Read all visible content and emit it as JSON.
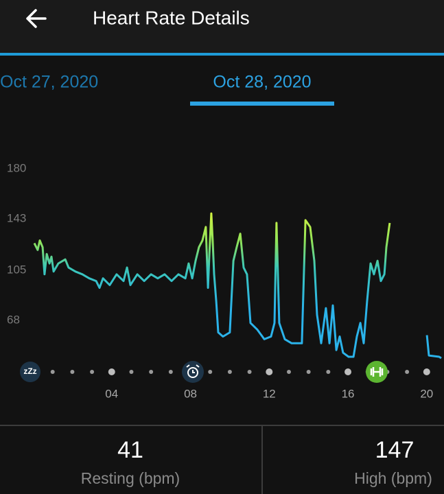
{
  "header": {
    "title": "Heart Rate Details"
  },
  "tabs": [
    "Oct 27, 2020",
    "Oct 28, 2020"
  ],
  "chart_data": {
    "type": "line",
    "x": [
      0.07,
      0.24,
      0.35,
      0.49,
      0.59,
      0.7,
      0.84,
      0.94,
      1.05,
      1.29,
      1.64,
      1.81,
      2.16,
      2.51,
      2.86,
      3.21,
      3.38,
      3.56,
      3.9,
      4.25,
      4.6,
      4.78,
      4.95,
      5.3,
      5.65,
      6.0,
      6.34,
      6.69,
      7.04,
      7.39,
      7.74,
      7.91,
      8.09,
      8.26,
      8.43,
      8.61,
      8.78,
      8.89,
      8.96,
      9.06,
      9.13,
      9.2,
      9.31,
      9.41,
      9.65,
      10.0,
      10.18,
      10.35,
      10.53,
      10.7,
      10.87,
      11.05,
      11.4,
      11.75,
      12.09,
      12.27,
      12.37,
      12.51,
      12.79,
      13.14,
      13.66,
      13.84,
      14.08,
      14.29,
      14.43,
      14.64,
      14.88,
      15.06,
      15.23,
      15.41,
      15.58,
      15.75,
      16.03,
      16.28,
      16.45,
      16.63,
      16.8,
      16.97,
      17.15,
      17.32,
      17.5,
      17.67,
      17.85,
      17.95,
      18.12,
      19.0,
      20.01,
      20.11,
      20.63,
      20.74
    ],
    "values": [
      125,
      120,
      127,
      122,
      102,
      117,
      110,
      115,
      104,
      110,
      113,
      107,
      104,
      102,
      99,
      97,
      92,
      99,
      94,
      102,
      97,
      107,
      94,
      102,
      97,
      102,
      99,
      102,
      97,
      102,
      99,
      110,
      99,
      112,
      122,
      127,
      137,
      92,
      117,
      147,
      127,
      102,
      82,
      59,
      56,
      59,
      112,
      122,
      132,
      107,
      102,
      66,
      61,
      54,
      56,
      66,
      140,
      66,
      54,
      51,
      51,
      142,
      137,
      112,
      72,
      51,
      77,
      51,
      79,
      46,
      56,
      44,
      41,
      41,
      56,
      66,
      51,
      82,
      110,
      102,
      112,
      97,
      102,
      122,
      140,
      null,
      57,
      42,
      41,
      40
    ],
    "xlim": [
      0,
      21
    ],
    "ylim": [
      40,
      180
    ],
    "yticks": [
      68,
      105,
      143,
      180
    ],
    "xticks": [
      {
        "value": 4,
        "label": "04"
      },
      {
        "value": 8,
        "label": "08"
      },
      {
        "value": 12,
        "label": "12"
      },
      {
        "value": 16,
        "label": "16"
      },
      {
        "value": 20,
        "label": "20"
      }
    ],
    "grid": false,
    "sleep_icon": "zZz"
  },
  "stats": [
    {
      "value": "41",
      "label": "Resting (bpm)"
    },
    {
      "value": "147",
      "label": "High (bpm)"
    }
  ]
}
